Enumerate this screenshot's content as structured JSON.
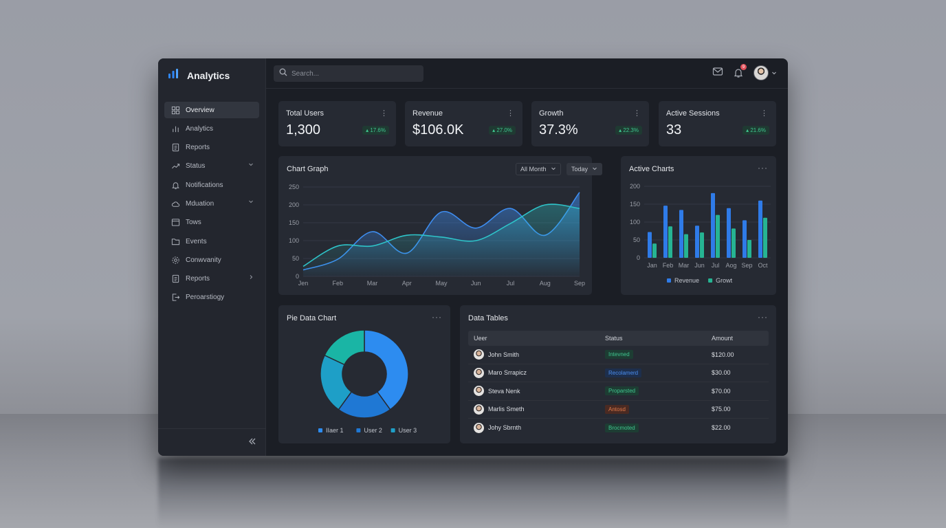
{
  "app": {
    "title": "Analytics",
    "accent": "#2f86f6"
  },
  "search": {
    "placeholder": "Search..."
  },
  "topbar": {
    "notification_count": "9"
  },
  "sidebar": {
    "items": [
      {
        "label": "Overview",
        "icon": "grid-icon",
        "active": true
      },
      {
        "label": "Analytics",
        "icon": "bar-chart-icon"
      },
      {
        "label": "Reports",
        "icon": "document-icon"
      },
      {
        "label": "Status",
        "icon": "trend-icon",
        "chevron": "down"
      },
      {
        "label": "Notifications",
        "icon": "bell-icon"
      },
      {
        "label": "Mduation",
        "icon": "cloud-icon",
        "chevron": "down"
      },
      {
        "label": "Tows",
        "icon": "window-icon"
      },
      {
        "label": "Events",
        "icon": "folder-icon"
      },
      {
        "label": "Conwvanity",
        "icon": "gear-icon"
      },
      {
        "label": "Reports",
        "icon": "document-icon",
        "chevron": "right"
      },
      {
        "label": "Peroarstiogy",
        "icon": "logout-icon"
      }
    ]
  },
  "stats": [
    {
      "title": "Total Users",
      "value": "1,300",
      "change": "17.6%"
    },
    {
      "title": "Revenue",
      "value": "$106.0K",
      "change": "27.0%"
    },
    {
      "title": "Growth",
      "value": "37.3%",
      "change": "22.3%"
    },
    {
      "title": "Active Sessions",
      "value": "33",
      "change": "21.6%"
    }
  ],
  "chart_graph": {
    "title": "Chart Graph",
    "filter_month": "All Month",
    "filter_period": "Today"
  },
  "active_charts": {
    "title": "Active Charts"
  },
  "pie_chart": {
    "title": "Pie Data Chart"
  },
  "chart_data": [
    {
      "type": "area",
      "title": "Chart Graph",
      "categories": [
        "Jen",
        "Feb",
        "Mar",
        "Apr",
        "May",
        "Jun",
        "Jul",
        "Aug",
        "Sep"
      ],
      "yticks": [
        0,
        50,
        100,
        150,
        200,
        250
      ],
      "ylim": [
        0,
        250
      ],
      "grid": true,
      "series": [
        {
          "color": "#3e8df0",
          "values": [
            18,
            48,
            125,
            65,
            180,
            135,
            190,
            115,
            235
          ]
        },
        {
          "color": "#2ec4c9",
          "values": [
            28,
            85,
            85,
            115,
            110,
            100,
            148,
            200,
            190
          ]
        }
      ]
    },
    {
      "type": "bar",
      "title": "Active Charts",
      "categories": [
        "Jan",
        "Feb",
        "Mar",
        "Jun",
        "Jul",
        "Aog",
        "Sep",
        "Oct"
      ],
      "yticks": [
        0,
        50,
        100,
        150,
        200
      ],
      "ylim": [
        0,
        200
      ],
      "grid": true,
      "legend": "bottom",
      "series": [
        {
          "name": "Revenue",
          "color": "#2f7be8",
          "values": [
            72,
            146,
            134,
            90,
            181,
            139,
            105,
            160
          ]
        },
        {
          "name": "Growt",
          "color": "#26b493",
          "values": [
            40,
            88,
            66,
            71,
            120,
            82,
            50,
            112
          ]
        }
      ]
    },
    {
      "type": "pie",
      "title": "Pie Data Chart",
      "legend": "bottom",
      "slices": [
        {
          "name": "IIaer 1",
          "value": 40,
          "color": "#2d8cf0"
        },
        {
          "name": "User 2",
          "value": 20,
          "color": "#1f78d4"
        },
        {
          "name": "User 3",
          "value": 22,
          "color": "#1e9fc7"
        },
        {
          "name": "",
          "value": 18,
          "color": "#1ab5a5"
        }
      ]
    }
  ],
  "table": {
    "title": "Data Tables",
    "columns": [
      "Ueer",
      "Status",
      "Amount"
    ],
    "rows": [
      {
        "user": "John Smith",
        "status": "Intevned",
        "status_color": "#3fc68f",
        "status_bg": "#1d3d33",
        "amount": "$120.00"
      },
      {
        "user": "Maro Srrapicz",
        "status": "Recolamerd",
        "status_color": "#4a8ef0",
        "status_bg": "#1d2f4d",
        "amount": "$30.00"
      },
      {
        "user": "Steva Nenk",
        "status": "Proparsted",
        "status_color": "#3fc68f",
        "status_bg": "#1d3d33",
        "amount": "$70.00"
      },
      {
        "user": "Marlis Smeth",
        "status": "Antosd",
        "status_color": "#e07a4a",
        "status_bg": "#4a2a22",
        "amount": "$75.00"
      },
      {
        "user": "Johy Sbrnth",
        "status": "Brocmoted",
        "status_color": "#3fc68f",
        "status_bg": "#1d3d33",
        "amount": "$22.00"
      }
    ]
  }
}
